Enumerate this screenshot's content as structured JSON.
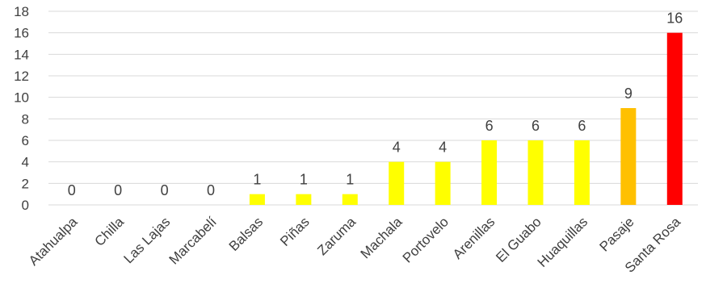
{
  "chart_data": {
    "type": "bar",
    "title": "",
    "xlabel": "",
    "ylabel": "",
    "ylim": [
      0,
      18
    ],
    "ytick_step": 2,
    "grid": true,
    "legend": "none",
    "categories": [
      "Atahualpa",
      "Chilla",
      "Las Lajas",
      "Marcabelí",
      "Balsas",
      "Piñas",
      "Zaruma",
      "Machala",
      "Portovelo",
      "Arenillas",
      "El Guabo",
      "Huaquillas",
      "Pasaje",
      "Santa Rosa"
    ],
    "values": [
      0,
      0,
      0,
      0,
      1,
      1,
      1,
      4,
      4,
      6,
      6,
      6,
      9,
      16
    ],
    "colors": [
      "#FFFF00",
      "#FFFF00",
      "#FFFF00",
      "#FFFF00",
      "#FFFF00",
      "#FFFF00",
      "#FFFF00",
      "#FFFF00",
      "#FFFF00",
      "#FFFF00",
      "#FFFF00",
      "#FFFF00",
      "#FFC000",
      "#FF0000"
    ]
  }
}
